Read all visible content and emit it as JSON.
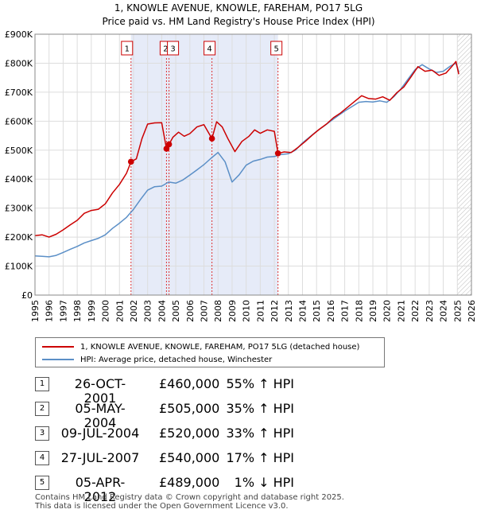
{
  "chart_data": {
    "type": "line",
    "title": "1, KNOWLE AVENUE, KNOWLE, FAREHAM, PO17 5LG",
    "subtitle": "Price paid vs. HM Land Registry's House Price Index (HPI)",
    "xlabel": "",
    "ylabel": "",
    "xlim": [
      1995,
      2026
    ],
    "ylim": [
      0,
      900000
    ],
    "grid": true,
    "legend_placement": "below",
    "x_ticks": [
      "1995",
      "1996",
      "1997",
      "1998",
      "1999",
      "2000",
      "2001",
      "2002",
      "2003",
      "2004",
      "2005",
      "2006",
      "2007",
      "2008",
      "2009",
      "2010",
      "2011",
      "2012",
      "2013",
      "2014",
      "2015",
      "2016",
      "2017",
      "2018",
      "2019",
      "2020",
      "2021",
      "2022",
      "2023",
      "2024",
      "2025",
      "2026"
    ],
    "y_ticks": [
      {
        "value": 0,
        "label": "£0"
      },
      {
        "value": 100000,
        "label": "£100K"
      },
      {
        "value": 200000,
        "label": "£200K"
      },
      {
        "value": 300000,
        "label": "£300K"
      },
      {
        "value": 400000,
        "label": "£400K"
      },
      {
        "value": 500000,
        "label": "£500K"
      },
      {
        "value": 600000,
        "label": "£600K"
      },
      {
        "value": 700000,
        "label": "£700K"
      },
      {
        "value": 800000,
        "label": "£800K"
      },
      {
        "value": 900000,
        "label": "£900K"
      }
    ],
    "series": [
      {
        "name": "1, KNOWLE AVENUE, KNOWLE, FAREHAM, PO17 5LG (detached house)",
        "color": "#cc0000",
        "points": [
          [
            1995.0,
            205000
          ],
          [
            1995.5,
            208000
          ],
          [
            1996.0,
            200000
          ],
          [
            1996.5,
            210000
          ],
          [
            1997.0,
            225000
          ],
          [
            1997.5,
            242000
          ],
          [
            1998.0,
            258000
          ],
          [
            1998.5,
            282000
          ],
          [
            1999.0,
            292000
          ],
          [
            1999.5,
            296000
          ],
          [
            2000.0,
            315000
          ],
          [
            2000.5,
            352000
          ],
          [
            2001.0,
            382000
          ],
          [
            2001.5,
            420000
          ],
          [
            2001.82,
            460000
          ],
          [
            2002.2,
            470000
          ],
          [
            2002.6,
            540000
          ],
          [
            2003.0,
            590000
          ],
          [
            2003.5,
            594000
          ],
          [
            2004.0,
            595000
          ],
          [
            2004.34,
            505000
          ],
          [
            2004.52,
            520000
          ],
          [
            2004.8,
            545000
          ],
          [
            2005.2,
            562000
          ],
          [
            2005.6,
            548000
          ],
          [
            2006.0,
            557000
          ],
          [
            2006.5,
            580000
          ],
          [
            2007.0,
            588000
          ],
          [
            2007.57,
            540000
          ],
          [
            2007.9,
            598000
          ],
          [
            2008.3,
            580000
          ],
          [
            2008.7,
            540000
          ],
          [
            2009.2,
            495000
          ],
          [
            2009.7,
            530000
          ],
          [
            2010.2,
            548000
          ],
          [
            2010.6,
            570000
          ],
          [
            2011.0,
            558000
          ],
          [
            2011.5,
            570000
          ],
          [
            2012.0,
            565000
          ],
          [
            2012.26,
            489000
          ],
          [
            2012.7,
            494000
          ],
          [
            2013.2,
            492000
          ],
          [
            2013.7,
            510000
          ],
          [
            2014.2,
            530000
          ],
          [
            2014.7,
            552000
          ],
          [
            2015.2,
            572000
          ],
          [
            2015.7,
            590000
          ],
          [
            2016.2,
            612000
          ],
          [
            2016.7,
            628000
          ],
          [
            2017.2,
            648000
          ],
          [
            2017.7,
            668000
          ],
          [
            2018.2,
            688000
          ],
          [
            2018.7,
            678000
          ],
          [
            2019.2,
            676000
          ],
          [
            2019.7,
            684000
          ],
          [
            2020.2,
            672000
          ],
          [
            2020.7,
            698000
          ],
          [
            2021.2,
            718000
          ],
          [
            2021.7,
            752000
          ],
          [
            2022.2,
            788000
          ],
          [
            2022.7,
            772000
          ],
          [
            2023.2,
            776000
          ],
          [
            2023.7,
            758000
          ],
          [
            2024.2,
            766000
          ],
          [
            2024.6,
            788000
          ],
          [
            2024.9,
            806000
          ],
          [
            2025.1,
            762000
          ]
        ]
      },
      {
        "name": "HPI: Average price, detached house, Winchester",
        "color": "#5b8fc7",
        "points": [
          [
            1995.0,
            135000
          ],
          [
            1995.5,
            134000
          ],
          [
            1996.0,
            132000
          ],
          [
            1996.5,
            137000
          ],
          [
            1997.0,
            147000
          ],
          [
            1997.5,
            158000
          ],
          [
            1998.0,
            168000
          ],
          [
            1998.5,
            180000
          ],
          [
            1999.0,
            188000
          ],
          [
            1999.5,
            196000
          ],
          [
            2000.0,
            208000
          ],
          [
            2000.5,
            230000
          ],
          [
            2001.0,
            248000
          ],
          [
            2001.5,
            268000
          ],
          [
            2002.0,
            296000
          ],
          [
            2002.5,
            330000
          ],
          [
            2003.0,
            362000
          ],
          [
            2003.5,
            374000
          ],
          [
            2004.0,
            376000
          ],
          [
            2004.5,
            390000
          ],
          [
            2005.0,
            386000
          ],
          [
            2005.5,
            397000
          ],
          [
            2006.0,
            414000
          ],
          [
            2006.5,
            432000
          ],
          [
            2007.0,
            450000
          ],
          [
            2007.5,
            472000
          ],
          [
            2008.0,
            492000
          ],
          [
            2008.5,
            460000
          ],
          [
            2009.0,
            390000
          ],
          [
            2009.5,
            415000
          ],
          [
            2010.0,
            448000
          ],
          [
            2010.5,
            462000
          ],
          [
            2011.0,
            468000
          ],
          [
            2011.5,
            476000
          ],
          [
            2012.0,
            478000
          ],
          [
            2012.5,
            485000
          ],
          [
            2013.0,
            488000
          ],
          [
            2013.5,
            500000
          ],
          [
            2014.0,
            525000
          ],
          [
            2014.5,
            545000
          ],
          [
            2015.0,
            565000
          ],
          [
            2015.5,
            582000
          ],
          [
            2016.0,
            600000
          ],
          [
            2016.5,
            618000
          ],
          [
            2017.0,
            635000
          ],
          [
            2017.5,
            650000
          ],
          [
            2018.0,
            665000
          ],
          [
            2018.5,
            668000
          ],
          [
            2019.0,
            666000
          ],
          [
            2019.5,
            670000
          ],
          [
            2020.0,
            665000
          ],
          [
            2020.5,
            685000
          ],
          [
            2021.0,
            712000
          ],
          [
            2021.5,
            745000
          ],
          [
            2022.0,
            778000
          ],
          [
            2022.5,
            795000
          ],
          [
            2023.0,
            780000
          ],
          [
            2023.5,
            768000
          ],
          [
            2024.0,
            772000
          ],
          [
            2024.5,
            790000
          ],
          [
            2024.9,
            800000
          ],
          [
            2025.1,
            770000
          ]
        ]
      }
    ],
    "transactions": [
      {
        "label": "1",
        "x": 2001.82,
        "y": 460000,
        "date": "26-OCT-2001",
        "price": "£460,000",
        "hpi": "55% ↑ HPI"
      },
      {
        "label": "2",
        "x": 2004.34,
        "y": 505000,
        "date": "05-MAY-2004",
        "price": "£505,000",
        "hpi": "35% ↑ HPI"
      },
      {
        "label": "3",
        "x": 2004.52,
        "y": 520000,
        "date": "09-JUL-2004",
        "price": "£520,000",
        "hpi": "33% ↑ HPI"
      },
      {
        "label": "4",
        "x": 2007.57,
        "y": 540000,
        "date": "27-JUL-2007",
        "price": "£540,000",
        "hpi": "17% ↑ HPI"
      },
      {
        "label": "5",
        "x": 2012.26,
        "y": 489000,
        "date": "05-APR-2012",
        "price": "£489,000",
        "hpi": "1% ↓ HPI"
      }
    ],
    "forecast_start": 2025.0
  },
  "footer": {
    "line1": "Contains HM Land Registry data © Crown copyright and database right 2025.",
    "line2": "This data is licensed under the Open Government Licence v3.0."
  }
}
